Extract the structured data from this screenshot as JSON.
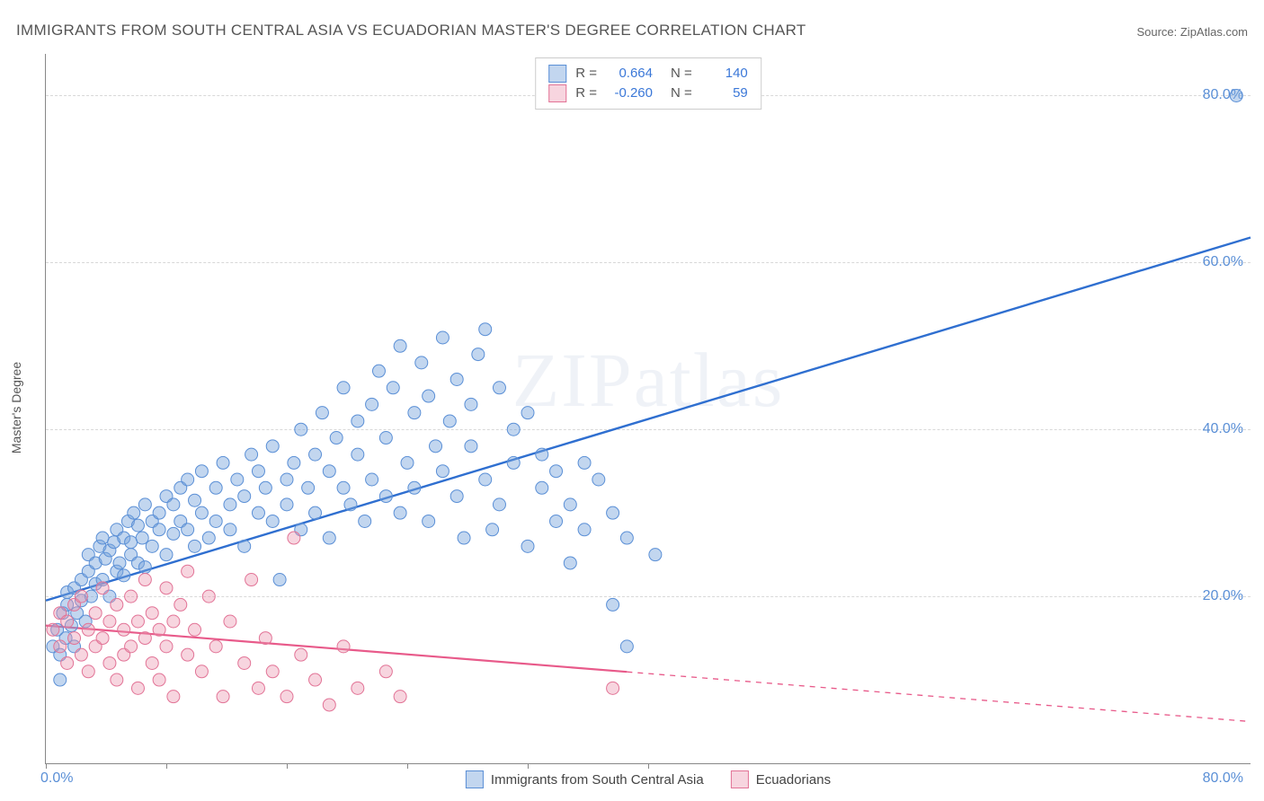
{
  "title": "IMMIGRANTS FROM SOUTH CENTRAL ASIA VS ECUADORIAN MASTER'S DEGREE CORRELATION CHART",
  "source": "Source: ZipAtlas.com",
  "watermark": "ZIPatlas",
  "y_axis_label": "Master's Degree",
  "chart": {
    "type": "scatter",
    "xlim": [
      0,
      85
    ],
    "ylim": [
      0,
      85
    ],
    "x_origin_label": "0.0%",
    "x_max_label": "80.0%",
    "y_ticks": [
      20,
      40,
      60,
      80
    ],
    "y_tick_labels": [
      "20.0%",
      "40.0%",
      "60.0%",
      "80.0%"
    ],
    "x_tick_positions": [
      0,
      8.5,
      17,
      25.5,
      34,
      42.5
    ],
    "grid_color": "#d8d8d8",
    "background_color": "#ffffff",
    "marker_radius": 7,
    "marker_stroke_width": 1,
    "series": [
      {
        "id": "south_central_asia",
        "label": "Immigrants from South Central Asia",
        "color_fill": "rgba(120,165,220,0.45)",
        "color_stroke": "#5a8fd6",
        "line_color": "#2f6fd0",
        "line_width": 2.4,
        "R": "0.664",
        "N": "140",
        "trend": {
          "x1": 0,
          "y1": 19.5,
          "x2": 85,
          "y2": 63,
          "solid_until_x": 85
        },
        "points": [
          [
            0.5,
            14
          ],
          [
            0.8,
            16
          ],
          [
            1,
            13
          ],
          [
            1,
            10
          ],
          [
            1.2,
            18
          ],
          [
            1.4,
            15
          ],
          [
            1.5,
            19
          ],
          [
            1.5,
            20.5
          ],
          [
            1.8,
            16.5
          ],
          [
            2,
            14
          ],
          [
            2,
            21
          ],
          [
            2.2,
            18
          ],
          [
            2.5,
            22
          ],
          [
            2.5,
            19.5
          ],
          [
            2.8,
            17
          ],
          [
            3,
            23
          ],
          [
            3,
            25
          ],
          [
            3.2,
            20
          ],
          [
            3.5,
            24
          ],
          [
            3.5,
            21.5
          ],
          [
            3.8,
            26
          ],
          [
            4,
            22
          ],
          [
            4,
            27
          ],
          [
            4.2,
            24.5
          ],
          [
            4.5,
            20
          ],
          [
            4.5,
            25.5
          ],
          [
            4.8,
            26.5
          ],
          [
            5,
            23
          ],
          [
            5,
            28
          ],
          [
            5.2,
            24
          ],
          [
            5.5,
            27
          ],
          [
            5.5,
            22.5
          ],
          [
            5.8,
            29
          ],
          [
            6,
            25
          ],
          [
            6,
            26.5
          ],
          [
            6.2,
            30
          ],
          [
            6.5,
            24
          ],
          [
            6.5,
            28.5
          ],
          [
            6.8,
            27
          ],
          [
            7,
            31
          ],
          [
            7,
            23.5
          ],
          [
            7.5,
            29
          ],
          [
            7.5,
            26
          ],
          [
            8,
            30
          ],
          [
            8,
            28
          ],
          [
            8.5,
            32
          ],
          [
            8.5,
            25
          ],
          [
            9,
            27.5
          ],
          [
            9,
            31
          ],
          [
            9.5,
            33
          ],
          [
            9.5,
            29
          ],
          [
            10,
            28
          ],
          [
            10,
            34
          ],
          [
            10.5,
            26
          ],
          [
            10.5,
            31.5
          ],
          [
            11,
            30
          ],
          [
            11,
            35
          ],
          [
            11.5,
            27
          ],
          [
            12,
            33
          ],
          [
            12,
            29
          ],
          [
            12.5,
            36
          ],
          [
            13,
            31
          ],
          [
            13,
            28
          ],
          [
            13.5,
            34
          ],
          [
            14,
            32
          ],
          [
            14,
            26
          ],
          [
            14.5,
            37
          ],
          [
            15,
            30
          ],
          [
            15,
            35
          ],
          [
            15.5,
            33
          ],
          [
            16,
            29
          ],
          [
            16,
            38
          ],
          [
            16.5,
            22
          ],
          [
            17,
            34
          ],
          [
            17,
            31
          ],
          [
            17.5,
            36
          ],
          [
            18,
            28
          ],
          [
            18,
            40
          ],
          [
            18.5,
            33
          ],
          [
            19,
            37
          ],
          [
            19,
            30
          ],
          [
            19.5,
            42
          ],
          [
            20,
            35
          ],
          [
            20,
            27
          ],
          [
            20.5,
            39
          ],
          [
            21,
            33
          ],
          [
            21,
            45
          ],
          [
            21.5,
            31
          ],
          [
            22,
            37
          ],
          [
            22,
            41
          ],
          [
            22.5,
            29
          ],
          [
            23,
            43
          ],
          [
            23,
            34
          ],
          [
            23.5,
            47
          ],
          [
            24,
            32
          ],
          [
            24,
            39
          ],
          [
            24.5,
            45
          ],
          [
            25,
            30
          ],
          [
            25,
            50
          ],
          [
            25.5,
            36
          ],
          [
            26,
            42
          ],
          [
            26,
            33
          ],
          [
            26.5,
            48
          ],
          [
            27,
            29
          ],
          [
            27,
            44
          ],
          [
            27.5,
            38
          ],
          [
            28,
            51
          ],
          [
            28,
            35
          ],
          [
            28.5,
            41
          ],
          [
            29,
            32
          ],
          [
            29,
            46
          ],
          [
            29.5,
            27
          ],
          [
            30,
            43
          ],
          [
            30,
            38
          ],
          [
            30.5,
            49
          ],
          [
            31,
            34
          ],
          [
            31,
            52
          ],
          [
            31.5,
            28
          ],
          [
            32,
            45
          ],
          [
            32,
            31
          ],
          [
            33,
            40
          ],
          [
            33,
            36
          ],
          [
            34,
            26
          ],
          [
            34,
            42
          ],
          [
            35,
            33
          ],
          [
            35,
            37
          ],
          [
            36,
            29
          ],
          [
            36,
            35
          ],
          [
            37,
            24
          ],
          [
            37,
            31
          ],
          [
            38,
            36
          ],
          [
            38,
            28
          ],
          [
            39,
            34
          ],
          [
            40,
            30
          ],
          [
            40,
            19
          ],
          [
            41,
            27
          ],
          [
            41,
            14
          ],
          [
            43,
            25
          ],
          [
            84,
            80
          ]
        ]
      },
      {
        "id": "ecuadorians",
        "label": "Ecuadorians",
        "color_fill": "rgba(235,150,175,0.4)",
        "color_stroke": "#e27396",
        "line_color": "#e85a8a",
        "line_width": 2.2,
        "R": "-0.260",
        "N": "59",
        "trend": {
          "x1": 0,
          "y1": 16.5,
          "x2": 85,
          "y2": 5,
          "solid_until_x": 41
        },
        "points": [
          [
            0.5,
            16
          ],
          [
            1,
            14
          ],
          [
            1,
            18
          ],
          [
            1.5,
            12
          ],
          [
            1.5,
            17
          ],
          [
            2,
            15
          ],
          [
            2,
            19
          ],
          [
            2.5,
            13
          ],
          [
            2.5,
            20
          ],
          [
            3,
            16
          ],
          [
            3,
            11
          ],
          [
            3.5,
            18
          ],
          [
            3.5,
            14
          ],
          [
            4,
            21
          ],
          [
            4,
            15
          ],
          [
            4.5,
            12
          ],
          [
            4.5,
            17
          ],
          [
            5,
            19
          ],
          [
            5,
            10
          ],
          [
            5.5,
            16
          ],
          [
            5.5,
            13
          ],
          [
            6,
            20
          ],
          [
            6,
            14
          ],
          [
            6.5,
            17
          ],
          [
            6.5,
            9
          ],
          [
            7,
            15
          ],
          [
            7,
            22
          ],
          [
            7.5,
            12
          ],
          [
            7.5,
            18
          ],
          [
            8,
            16
          ],
          [
            8,
            10
          ],
          [
            8.5,
            21
          ],
          [
            8.5,
            14
          ],
          [
            9,
            17
          ],
          [
            9,
            8
          ],
          [
            9.5,
            19
          ],
          [
            10,
            13
          ],
          [
            10,
            23
          ],
          [
            10.5,
            16
          ],
          [
            11,
            11
          ],
          [
            11.5,
            20
          ],
          [
            12,
            14
          ],
          [
            12.5,
            8
          ],
          [
            13,
            17
          ],
          [
            14,
            12
          ],
          [
            14.5,
            22
          ],
          [
            15,
            9
          ],
          [
            15.5,
            15
          ],
          [
            16,
            11
          ],
          [
            17,
            8
          ],
          [
            17.5,
            27
          ],
          [
            18,
            13
          ],
          [
            19,
            10
          ],
          [
            20,
            7
          ],
          [
            21,
            14
          ],
          [
            22,
            9
          ],
          [
            24,
            11
          ],
          [
            25,
            8
          ],
          [
            40,
            9
          ]
        ]
      }
    ]
  },
  "legend_top_rows": [
    {
      "series_idx": 0
    },
    {
      "series_idx": 1
    }
  ],
  "legend_bottom_items": [
    {
      "series_idx": 0
    },
    {
      "series_idx": 1
    }
  ],
  "labels": {
    "R_prefix": "R =",
    "N_prefix": "N ="
  }
}
